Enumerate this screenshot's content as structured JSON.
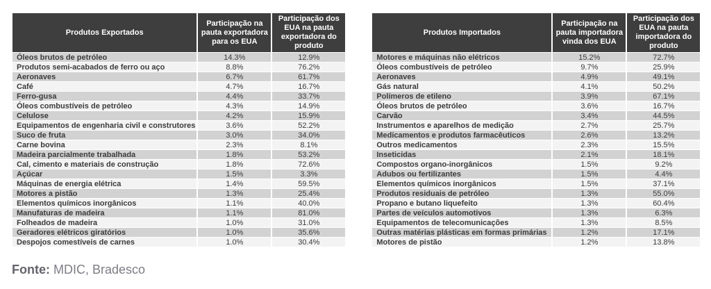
{
  "colors": {
    "header_bg": "#3e3e3e",
    "header_text": "#ffffff",
    "row_odd": "#d2d2d2",
    "row_even": "#f3f3f3",
    "cell_text": "#3b3b3b",
    "footer_label": "#63636b",
    "footer_text": "#7d7d85",
    "page_bg": "#ffffff"
  },
  "footer": {
    "label": "Fonte:",
    "text": " MDIC, Bradesco"
  },
  "tables": [
    {
      "id": "exports",
      "headers": [
        "Produtos Exportados",
        "Participação na pauta exportadora para os EUA",
        "Participação dos EUA na pauta exportadora do produto"
      ],
      "rows": [
        [
          "Óleos brutos de petróleo",
          "14.3%",
          "12.9%"
        ],
        [
          "Produtos semi-acabados de ferro ou aço",
          "8.8%",
          "76.2%"
        ],
        [
          "Aeronaves",
          "6.7%",
          "61.7%"
        ],
        [
          "Café",
          "4.7%",
          "16.7%"
        ],
        [
          "Ferro-gusa",
          "4.4%",
          "33.7%"
        ],
        [
          "Óleos combustíveis de petróleo",
          "4.3%",
          "14.9%"
        ],
        [
          "Celulose",
          "4.2%",
          "15.9%"
        ],
        [
          "Equipamentos de engenharia civil e construtores",
          "3.6%",
          "52.2%"
        ],
        [
          "Suco de fruta",
          "3.0%",
          "34.0%"
        ],
        [
          "Carne bovina",
          "2.3%",
          "8.1%"
        ],
        [
          "Madeira parcialmente trabalhada",
          "1.8%",
          "53.2%"
        ],
        [
          "Cal, cimento e materiais de construção",
          "1.8%",
          "72.6%"
        ],
        [
          "Açúcar",
          "1.5%",
          "3.3%"
        ],
        [
          "Máquinas de energia elétrica",
          "1.4%",
          "59.5%"
        ],
        [
          "Motores a pistão",
          "1.3%",
          "25.4%"
        ],
        [
          "Elementos químicos inorgânicos",
          "1.1%",
          "40.0%"
        ],
        [
          "Manufaturas de madeira",
          "1.1%",
          "81.0%"
        ],
        [
          "Folheados de madeira",
          "1.0%",
          "31.0%"
        ],
        [
          "Geradores elétricos giratórios",
          "1.0%",
          "35.6%"
        ],
        [
          "Despojos comestíveis de carnes",
          "1.0%",
          "30.4%"
        ]
      ]
    },
    {
      "id": "imports",
      "headers": [
        "Produtos Importados",
        "Participação na pauta importadora vinda dos EUA",
        "Participação dos EUA na pauta importadora do produto"
      ],
      "rows": [
        [
          "Motores e máquinas não elétricos",
          "15.2%",
          "72.7%"
        ],
        [
          "Óleos combustíveis de petróleo",
          "9.7%",
          "25.9%"
        ],
        [
          "Aeronaves",
          "4.9%",
          "49.1%"
        ],
        [
          "Gás natural",
          "4.1%",
          "50.2%"
        ],
        [
          "Polímeros de etileno",
          "3.9%",
          "67.1%"
        ],
        [
          "Óleos brutos de petróleo",
          "3.6%",
          "16.7%"
        ],
        [
          "Carvão",
          "3.4%",
          "44.5%"
        ],
        [
          "Instrumentos e aparelhos de medição",
          "2.7%",
          "25.7%"
        ],
        [
          "Medicamentos e produtos farmacêuticos",
          "2.6%",
          "13.2%"
        ],
        [
          "Outros medicamentos",
          "2.3%",
          "15.5%"
        ],
        [
          "Inseticidas",
          "2.1%",
          "18.1%"
        ],
        [
          "Compostos organo-inorgânicos",
          "1.5%",
          "9.2%"
        ],
        [
          "Adubos ou fertilizantes",
          "1.5%",
          "4.4%"
        ],
        [
          "Elementos químicos inorgânicos",
          "1.5%",
          "37.1%"
        ],
        [
          "Produtos residuais de petróleo",
          "1.3%",
          "55.0%"
        ],
        [
          "Propano e butano liquefeito",
          "1.3%",
          "60.4%"
        ],
        [
          "Partes de veículos automotivos",
          "1.3%",
          "6.3%"
        ],
        [
          "Equipamentos de telecomunicações",
          "1.3%",
          "8.5%"
        ],
        [
          "Outras matérias plásticas em formas primárias",
          "1.2%",
          "17.1%"
        ],
        [
          "Motores de pistão",
          "1.2%",
          "13.8%"
        ]
      ]
    }
  ]
}
